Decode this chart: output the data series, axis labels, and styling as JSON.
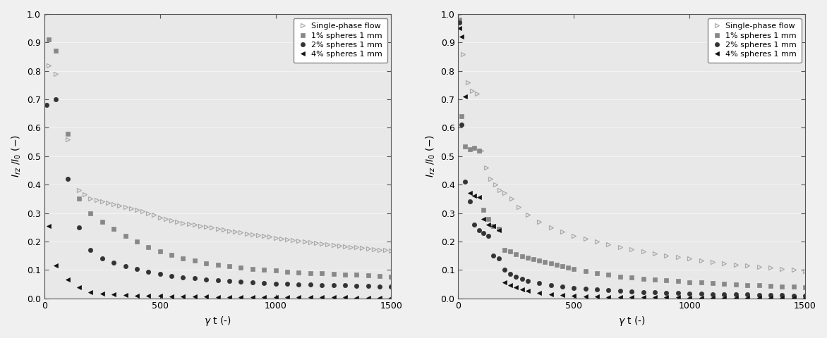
{
  "xlabel": "γ t (-)",
  "ylabel": "I_rz /I_0 (-)",
  "xlim": [
    0,
    1500
  ],
  "ylim": [
    0,
    1.0
  ],
  "yticks": [
    0,
    0.1,
    0.2,
    0.3,
    0.4,
    0.5,
    0.6,
    0.7,
    0.8,
    0.9,
    1.0
  ],
  "xticks": [
    0,
    500,
    1000,
    1500
  ],
  "legend_labels": [
    "Single-phase flow",
    "1% spheres 1 mm",
    "2% spheres 1 mm",
    "4% spheres 1 mm"
  ],
  "left_data": {
    "single_phase": {
      "x": [
        0,
        20,
        50,
        100,
        150,
        175,
        200,
        225,
        250,
        275,
        300,
        325,
        350,
        375,
        400,
        425,
        450,
        475,
        500,
        525,
        550,
        575,
        600,
        625,
        650,
        675,
        700,
        725,
        750,
        775,
        800,
        825,
        850,
        875,
        900,
        925,
        950,
        975,
        1000,
        1025,
        1050,
        1075,
        1100,
        1125,
        1150,
        1175,
        1200,
        1225,
        1250,
        1275,
        1300,
        1325,
        1350,
        1375,
        1400,
        1425,
        1450,
        1475,
        1500
      ],
      "y": [
        1.0,
        0.82,
        0.79,
        0.56,
        0.38,
        0.365,
        0.35,
        0.345,
        0.34,
        0.335,
        0.33,
        0.325,
        0.32,
        0.315,
        0.31,
        0.305,
        0.3,
        0.295,
        0.285,
        0.28,
        0.275,
        0.27,
        0.265,
        0.262,
        0.258,
        0.255,
        0.252,
        0.248,
        0.245,
        0.242,
        0.238,
        0.235,
        0.232,
        0.228,
        0.225,
        0.222,
        0.219,
        0.216,
        0.212,
        0.209,
        0.206,
        0.204,
        0.201,
        0.199,
        0.196,
        0.194,
        0.191,
        0.189,
        0.187,
        0.185,
        0.183,
        0.181,
        0.179,
        0.177,
        0.175,
        0.173,
        0.171,
        0.169,
        0.167
      ]
    },
    "pct1": {
      "x": [
        20,
        50,
        100,
        150,
        200,
        250,
        300,
        350,
        400,
        450,
        500,
        550,
        600,
        650,
        700,
        750,
        800,
        850,
        900,
        950,
        1000,
        1050,
        1100,
        1150,
        1200,
        1250,
        1300,
        1350,
        1400,
        1450,
        1500
      ],
      "y": [
        0.91,
        0.87,
        0.58,
        0.35,
        0.3,
        0.27,
        0.245,
        0.22,
        0.2,
        0.18,
        0.165,
        0.152,
        0.14,
        0.132,
        0.124,
        0.118,
        0.113,
        0.108,
        0.104,
        0.1,
        0.097,
        0.094,
        0.091,
        0.089,
        0.087,
        0.085,
        0.083,
        0.082,
        0.08,
        0.079,
        0.077
      ]
    },
    "pct2": {
      "x": [
        10,
        50,
        100,
        150,
        200,
        250,
        300,
        350,
        400,
        450,
        500,
        550,
        600,
        650,
        700,
        750,
        800,
        850,
        900,
        950,
        1000,
        1050,
        1100,
        1150,
        1200,
        1250,
        1300,
        1350,
        1400,
        1450,
        1500
      ],
      "y": [
        0.68,
        0.7,
        0.42,
        0.25,
        0.17,
        0.14,
        0.125,
        0.112,
        0.102,
        0.093,
        0.085,
        0.079,
        0.074,
        0.07,
        0.066,
        0.063,
        0.06,
        0.058,
        0.056,
        0.054,
        0.052,
        0.05,
        0.049,
        0.048,
        0.047,
        0.046,
        0.045,
        0.044,
        0.043,
        0.042,
        0.041
      ]
    },
    "pct4": {
      "x": [
        20,
        50,
        100,
        150,
        200,
        250,
        300,
        350,
        400,
        450,
        500,
        550,
        600,
        650,
        700,
        750,
        800,
        850,
        900,
        950,
        1000,
        1050,
        1100,
        1150,
        1200,
        1250,
        1300,
        1350,
        1400,
        1450,
        1500
      ],
      "y": [
        0.255,
        0.115,
        0.065,
        0.038,
        0.022,
        0.016,
        0.013,
        0.011,
        0.01,
        0.009,
        0.008,
        0.007,
        0.007,
        0.006,
        0.006,
        0.005,
        0.005,
        0.005,
        0.004,
        0.004,
        0.004,
        0.004,
        0.003,
        0.003,
        0.003,
        0.003,
        0.003,
        0.002,
        0.002,
        0.002,
        0.002
      ]
    }
  },
  "right_data": {
    "single_phase": {
      "x": [
        5,
        20,
        40,
        60,
        80,
        100,
        120,
        140,
        160,
        180,
        200,
        230,
        260,
        300,
        350,
        400,
        450,
        500,
        550,
        600,
        650,
        700,
        750,
        800,
        850,
        900,
        950,
        1000,
        1050,
        1100,
        1150,
        1200,
        1250,
        1300,
        1350,
        1400,
        1450,
        1500
      ],
      "y": [
        1.0,
        0.86,
        0.76,
        0.73,
        0.72,
        0.52,
        0.46,
        0.42,
        0.4,
        0.38,
        0.37,
        0.35,
        0.32,
        0.295,
        0.27,
        0.25,
        0.235,
        0.22,
        0.21,
        0.2,
        0.19,
        0.18,
        0.172,
        0.165,
        0.158,
        0.151,
        0.145,
        0.139,
        0.134,
        0.129,
        0.124,
        0.119,
        0.115,
        0.111,
        0.107,
        0.103,
        0.1,
        0.096
      ]
    },
    "pct1": {
      "x": [
        5,
        15,
        30,
        50,
        70,
        90,
        110,
        130,
        150,
        175,
        200,
        225,
        250,
        275,
        300,
        325,
        350,
        375,
        400,
        425,
        450,
        475,
        500,
        550,
        600,
        650,
        700,
        750,
        800,
        850,
        900,
        950,
        1000,
        1050,
        1100,
        1150,
        1200,
        1250,
        1300,
        1350,
        1400,
        1450,
        1500
      ],
      "y": [
        0.98,
        0.64,
        0.535,
        0.525,
        0.53,
        0.52,
        0.31,
        0.28,
        0.255,
        0.245,
        0.17,
        0.165,
        0.155,
        0.148,
        0.143,
        0.138,
        0.133,
        0.128,
        0.122,
        0.118,
        0.113,
        0.108,
        0.103,
        0.095,
        0.088,
        0.082,
        0.077,
        0.073,
        0.069,
        0.066,
        0.063,
        0.06,
        0.057,
        0.055,
        0.053,
        0.051,
        0.049,
        0.047,
        0.045,
        0.044,
        0.042,
        0.04,
        0.038
      ]
    },
    "pct2": {
      "x": [
        5,
        15,
        30,
        50,
        70,
        90,
        110,
        130,
        150,
        175,
        200,
        225,
        250,
        275,
        300,
        350,
        400,
        450,
        500,
        550,
        600,
        650,
        700,
        750,
        800,
        850,
        900,
        950,
        1000,
        1050,
        1100,
        1150,
        1200,
        1250,
        1300,
        1350,
        1400,
        1450,
        1500
      ],
      "y": [
        0.97,
        0.61,
        0.41,
        0.34,
        0.26,
        0.24,
        0.23,
        0.22,
        0.15,
        0.14,
        0.1,
        0.085,
        0.075,
        0.068,
        0.062,
        0.053,
        0.046,
        0.041,
        0.037,
        0.033,
        0.03,
        0.028,
        0.026,
        0.024,
        0.022,
        0.021,
        0.019,
        0.018,
        0.017,
        0.016,
        0.015,
        0.014,
        0.013,
        0.013,
        0.012,
        0.011,
        0.011,
        0.01,
        0.01
      ]
    },
    "pct4": {
      "x": [
        5,
        15,
        30,
        50,
        70,
        90,
        110,
        130,
        150,
        175,
        200,
        225,
        250,
        275,
        300,
        350,
        400,
        450,
        500,
        550,
        600,
        650,
        700,
        750,
        800,
        850,
        900,
        950,
        1000,
        1050,
        1100,
        1150,
        1200,
        1250,
        1300,
        1350,
        1400,
        1450,
        1500
      ],
      "y": [
        0.95,
        0.92,
        0.71,
        0.37,
        0.36,
        0.355,
        0.28,
        0.26,
        0.255,
        0.24,
        0.055,
        0.045,
        0.038,
        0.032,
        0.027,
        0.02,
        0.015,
        0.012,
        0.009,
        0.007,
        0.006,
        0.005,
        0.005,
        0.004,
        0.004,
        0.003,
        0.003,
        0.003,
        0.002,
        0.002,
        0.002,
        0.002,
        0.002,
        0.002,
        0.001,
        0.001,
        0.001,
        0.001,
        0.001
      ]
    }
  },
  "bg_color": "#e8e8e8",
  "spine_color": "#000000",
  "single_phase_color": "#aaaaaa",
  "pct1_color": "#888888",
  "pct2_color": "#333333",
  "pct4_color": "#111111"
}
